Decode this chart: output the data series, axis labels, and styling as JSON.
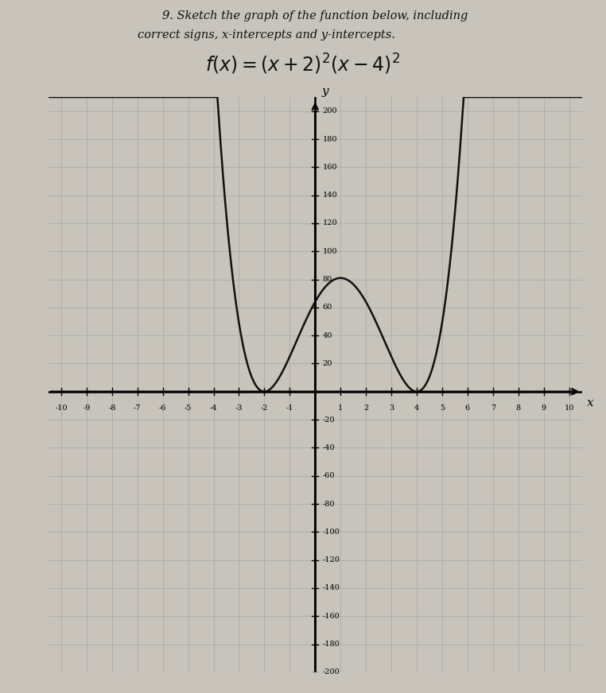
{
  "title_line1": "9. Sketch the graph of the function below, including",
  "title_line2": "correct signs, x-intercepts and y-intercepts.",
  "xlim": [
    -10.5,
    10.5
  ],
  "ylim": [
    -200,
    210
  ],
  "xticks": [
    -10,
    -9,
    -8,
    -7,
    -6,
    -5,
    -4,
    -3,
    -2,
    -1,
    1,
    2,
    3,
    4,
    5,
    6,
    7,
    8,
    9,
    10
  ],
  "yticks": [
    -200,
    -180,
    -160,
    -140,
    -120,
    -100,
    -80,
    -60,
    -40,
    -20,
    20,
    40,
    60,
    80,
    100,
    120,
    140,
    160,
    180,
    200
  ],
  "curve_color": "#111111",
  "paper_color": "#c8c4bb",
  "axis_color": "#000000",
  "text_color": "#111111",
  "grid_color": "#999999"
}
